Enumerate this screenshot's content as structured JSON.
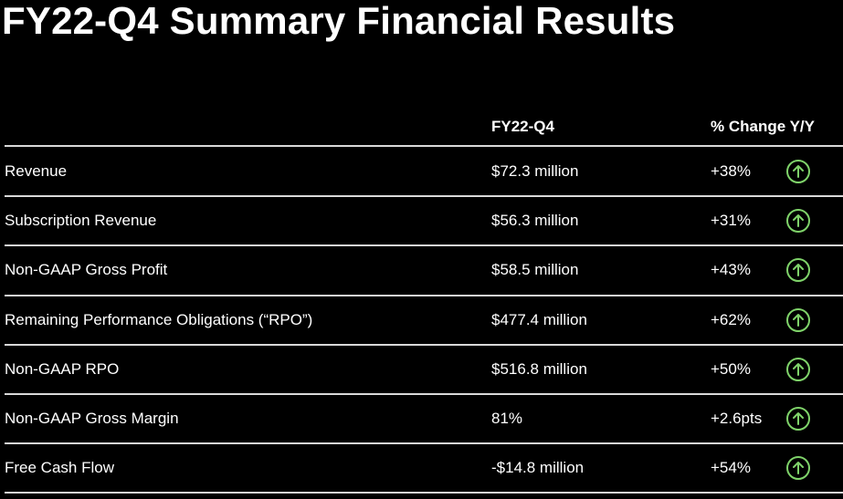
{
  "title": "FY22-Q4 Summary Financial Results",
  "table": {
    "headers": [
      "",
      "FY22-Q4",
      "% Change Y/Y"
    ],
    "rows": [
      {
        "metric": "Revenue",
        "value": "$72.3 million",
        "change": "+38%",
        "trend": "up-arrow-icon"
      },
      {
        "metric": "Subscription Revenue",
        "value": "$56.3 million",
        "change": "+31%",
        "trend": "up-arrow-icon"
      },
      {
        "metric": "Non-GAAP Gross Profit",
        "value": "$58.5 million",
        "change": "+43%",
        "trend": "up-arrow-icon"
      },
      {
        "metric": "Remaining Performance Obligations (“RPO”)",
        "value": "$477.4 million",
        "change": "+62%",
        "trend": "up-arrow-icon"
      },
      {
        "metric": "Non-GAAP RPO",
        "value": "$516.8 million",
        "change": "+50%",
        "trend": "up-arrow-icon"
      },
      {
        "metric": "Non-GAAP Gross Margin",
        "value": "81%",
        "change": "+2.6pts",
        "trend": "up-arrow-icon"
      },
      {
        "metric": "Free Cash Flow",
        "value": "-$14.8 million",
        "change": "+54%",
        "trend": "up-arrow-icon"
      }
    ]
  },
  "colors": {
    "background": "#000000",
    "text": "#ffffff",
    "rule": "#d9d9d9",
    "trend_up": "#7fd36a"
  }
}
